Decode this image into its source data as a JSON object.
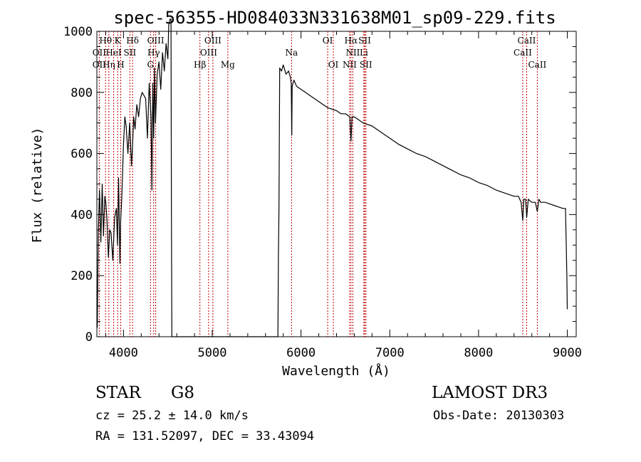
{
  "chart_data": {
    "type": "line",
    "title": "spec-56355-HD084033N331638M01_sp09-229.fits",
    "xlabel": "Wavelength (Å)",
    "ylabel": "Flux (relative)",
    "xlim": [
      3700,
      9100
    ],
    "ylim": [
      0,
      1000
    ],
    "xticks": [
      4000,
      5000,
      6000,
      7000,
      8000,
      9000
    ],
    "xtick_labels": [
      "4000",
      "5000",
      "6000",
      "7000",
      "8000",
      "9000"
    ],
    "yticks": [
      0,
      200,
      400,
      600,
      800,
      1000
    ],
    "ytick_labels": [
      "0",
      "200",
      "400",
      "600",
      "800",
      "1000"
    ],
    "series": [
      {
        "name": "flux",
        "x": [
          3705,
          3715,
          3730,
          3745,
          3760,
          3775,
          3790,
          3800,
          3815,
          3830,
          3845,
          3860,
          3880,
          3900,
          3920,
          3933,
          3945,
          3960,
          3968,
          3980,
          4000,
          4015,
          4030,
          4050,
          4070,
          4090,
          4101,
          4115,
          4130,
          4150,
          4170,
          4190,
          4210,
          4230,
          4250,
          4270,
          4290,
          4310,
          4320,
          4330,
          4340,
          4350,
          4360,
          4380,
          4400,
          4420,
          4440,
          4460,
          4480,
          4500,
          4510,
          4525,
          4530,
          4535,
          4540,
          4545,
          5740,
          5745,
          5752,
          5760,
          5780,
          5800,
          5830,
          5860,
          5880,
          5890,
          5896,
          5900,
          5920,
          5950,
          6000,
          6050,
          6100,
          6150,
          6200,
          6250,
          6300,
          6350,
          6400,
          6450,
          6500,
          6550,
          6563,
          6575,
          6600,
          6650,
          6700,
          6800,
          6900,
          7000,
          7100,
          7200,
          7300,
          7400,
          7500,
          7600,
          7700,
          7800,
          7900,
          8000,
          8100,
          8200,
          8300,
          8400,
          8450,
          8480,
          8498,
          8510,
          8530,
          8542,
          8560,
          8600,
          8640,
          8662,
          8680,
          8700,
          8750,
          8800,
          8850,
          8900,
          8950,
          8980,
          8995,
          9000
        ],
        "y": [
          30,
          330,
          480,
          310,
          500,
          330,
          460,
          440,
          380,
          260,
          350,
          340,
          250,
          390,
          420,
          300,
          520,
          240,
          380,
          450,
          630,
          720,
          690,
          600,
          700,
          560,
          620,
          720,
          680,
          760,
          720,
          780,
          800,
          790,
          780,
          650,
          830,
          720,
          480,
          830,
          650,
          880,
          700,
          860,
          900,
          810,
          930,
          870,
          960,
          910,
          1020,
          1040,
          1040,
          1040,
          400,
          0,
          0,
          260,
          420,
          880,
          870,
          890,
          860,
          870,
          850,
          830,
          660,
          820,
          840,
          820,
          810,
          800,
          790,
          780,
          770,
          760,
          750,
          745,
          740,
          730,
          730,
          720,
          640,
          720,
          720,
          710,
          700,
          690,
          670,
          650,
          630,
          615,
          600,
          590,
          575,
          560,
          545,
          530,
          520,
          505,
          495,
          480,
          470,
          460,
          460,
          440,
          380,
          450,
          450,
          390,
          450,
          440,
          440,
          410,
          450,
          440,
          440,
          435,
          430,
          425,
          420,
          420,
          200,
          90
        ]
      }
    ],
    "lines": [
      {
        "name": "Hθ",
        "x": 3798,
        "row": 1
      },
      {
        "name": "OII",
        "x": 3727,
        "row": 2
      },
      {
        "name": "OII",
        "x": 3727,
        "row": 3
      },
      {
        "name": "Hη",
        "x": 3835,
        "row": 3
      },
      {
        "name": "K",
        "x": 3934,
        "row": 1
      },
      {
        "name": "HeI",
        "x": 3889,
        "row": 2
      },
      {
        "name": "H",
        "x": 3969,
        "row": 3
      },
      {
        "name": "SII",
        "x": 4072,
        "row": 2
      },
      {
        "name": "Hδ",
        "x": 4102,
        "row": 1
      },
      {
        "name": "OIII",
        "x": 4363,
        "row": 1
      },
      {
        "name": "Hγ",
        "x": 4340,
        "row": 2
      },
      {
        "name": "G",
        "x": 4304,
        "row": 3
      },
      {
        "name": "Hβ",
        "x": 4861,
        "row": 3
      },
      {
        "name": "OIII",
        "x": 5007,
        "row": 1
      },
      {
        "name": "OIII",
        "x": 4959,
        "row": 2
      },
      {
        "name": "Mg",
        "x": 5175,
        "row": 3
      },
      {
        "name": "Na",
        "x": 5893,
        "row": 2
      },
      {
        "name": "OI",
        "x": 6300,
        "row": 1
      },
      {
        "name": "OI",
        "x": 6364,
        "row": 3
      },
      {
        "name": "Hα",
        "x": 6563,
        "row": 1
      },
      {
        "name": "NII",
        "x": 6584,
        "row": 2
      },
      {
        "name": "NII",
        "x": 6548,
        "row": 3
      },
      {
        "name": "SII",
        "x": 6717,
        "row": 1
      },
      {
        "name": "Li",
        "x": 6708,
        "row": 2
      },
      {
        "name": "SII",
        "x": 6731,
        "row": 3
      },
      {
        "name": "CaII",
        "x": 8542,
        "row": 1
      },
      {
        "name": "CaII",
        "x": 8498,
        "row": 2
      },
      {
        "name": "CaII",
        "x": 8662,
        "row": 3
      }
    ]
  },
  "info": {
    "class": "STAR",
    "subclass": "G8",
    "survey": "LAMOST DR3",
    "cz": "cz = 25.2 ± 14.0 km/s",
    "obs_date": "Obs-Date: 20130303",
    "radec": "RA = 131.52097, DEC =  33.43094"
  }
}
